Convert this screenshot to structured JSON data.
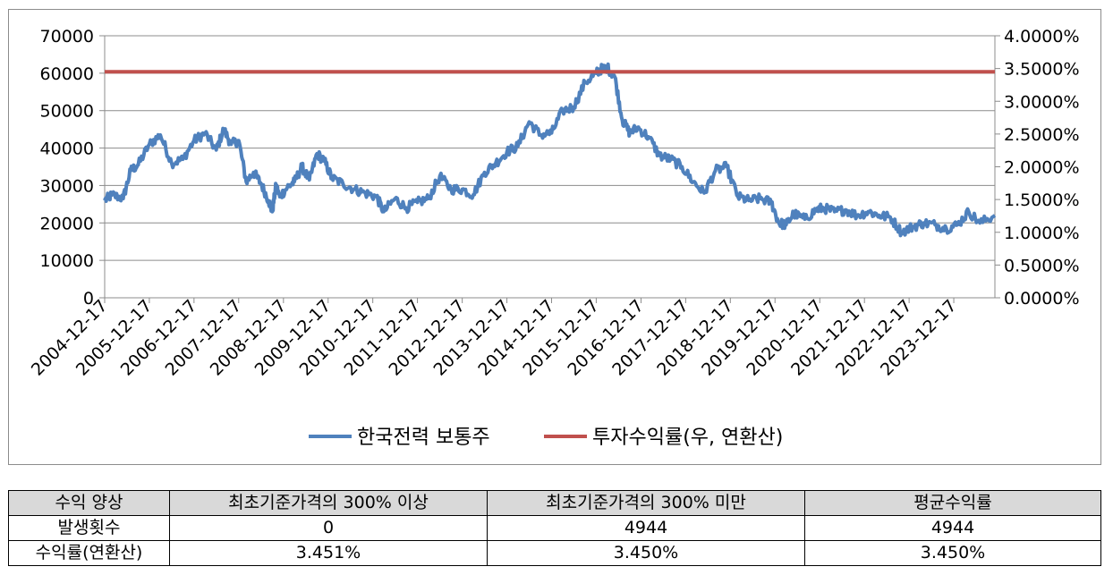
{
  "chart_data": {
    "type": "line",
    "title": "",
    "xlabel": "",
    "ylabel": "",
    "ylim": [
      0,
      70000
    ],
    "y2lim": [
      0,
      0.04
    ],
    "yticks": [
      "0",
      "10000",
      "20000",
      "30000",
      "40000",
      "50000",
      "60000",
      "70000"
    ],
    "y2ticks": [
      "0.0000%",
      "0.5000%",
      "1.0000%",
      "1.5000%",
      "2.0000%",
      "2.5000%",
      "3.0000%",
      "3.5000%",
      "4.0000%"
    ],
    "x_range": [
      "2004-12-17",
      "2024-11-17"
    ],
    "xticks": [
      "2004-12-17",
      "2005-12-17",
      "2006-12-17",
      "2007-12-17",
      "2008-12-17",
      "2009-12-17",
      "2010-12-17",
      "2011-12-17",
      "2012-12-17",
      "2013-12-17",
      "2014-12-17",
      "2015-12-17",
      "2016-12-17",
      "2017-12-17",
      "2018-12-17",
      "2019-12-17",
      "2020-12-17",
      "2021-12-17",
      "2022-12-17",
      "2023-12-17"
    ],
    "grid": true,
    "legend_position": "bottom",
    "series": [
      {
        "name": "한국전력 보통주",
        "axis": "left",
        "color": "#4f81bd",
        "x": [
          "2004-12-17",
          "2005-02-17",
          "2005-05-17",
          "2005-07-17",
          "2005-09-17",
          "2005-12-17",
          "2006-03-17",
          "2006-06-17",
          "2006-09-17",
          "2006-12-17",
          "2007-03-17",
          "2007-06-17",
          "2007-08-17",
          "2007-10-17",
          "2007-12-17",
          "2008-02-17",
          "2008-04-17",
          "2008-06-17",
          "2008-08-17",
          "2008-09-17",
          "2008-10-17",
          "2008-11-17",
          "2009-01-17",
          "2009-03-17",
          "2009-05-17",
          "2009-07-17",
          "2009-09-17",
          "2009-11-17",
          "2010-01-17",
          "2010-04-17",
          "2010-07-17",
          "2010-10-17",
          "2011-01-17",
          "2011-03-17",
          "2011-06-17",
          "2011-09-17",
          "2011-12-17",
          "2012-03-17",
          "2012-06-17",
          "2012-09-17",
          "2012-12-17",
          "2013-03-17",
          "2013-06-17",
          "2013-09-17",
          "2013-12-17",
          "2014-03-17",
          "2014-06-17",
          "2014-09-17",
          "2014-12-17",
          "2015-03-17",
          "2015-06-17",
          "2015-09-17",
          "2015-12-17",
          "2016-01-17",
          "2016-03-17",
          "2016-05-17",
          "2016-07-17",
          "2016-09-17",
          "2016-11-17",
          "2017-02-17",
          "2017-05-17",
          "2017-08-17",
          "2017-11-17",
          "2018-02-17",
          "2018-05-17",
          "2018-08-17",
          "2018-11-17",
          "2019-02-17",
          "2019-05-17",
          "2019-08-17",
          "2019-11-17",
          "2020-01-17",
          "2020-03-17",
          "2020-05-17",
          "2020-08-17",
          "2020-11-17",
          "2021-01-17",
          "2021-04-17",
          "2021-07-17",
          "2021-10-17",
          "2022-01-17",
          "2022-04-17",
          "2022-07-17",
          "2022-10-17",
          "2023-01-17",
          "2023-04-17",
          "2023-07-17",
          "2023-10-17",
          "2024-01-17",
          "2024-04-17",
          "2024-07-17",
          "2024-11-17"
        ],
        "values": [
          26000,
          27500,
          26500,
          34000,
          35500,
          41000,
          43500,
          36000,
          37000,
          42000,
          44000,
          39500,
          45000,
          41000,
          42000,
          31000,
          33500,
          30500,
          26000,
          23000,
          30000,
          27000,
          29500,
          31000,
          35000,
          31500,
          38500,
          36500,
          32000,
          30500,
          29000,
          28000,
          27000,
          23000,
          26500,
          24000,
          25500,
          26500,
          32500,
          29000,
          29000,
          27500,
          33500,
          36000,
          39000,
          40500,
          47000,
          43500,
          44000,
          50000,
          51000,
          57500,
          60000,
          61000,
          61500,
          59000,
          47500,
          44000,
          45500,
          43000,
          38000,
          37000,
          35000,
          31000,
          28000,
          34000,
          35000,
          27000,
          26000,
          26500,
          25500,
          20000,
          19500,
          22500,
          21000,
          23500,
          24000,
          23000,
          23500,
          22000,
          23000,
          22000,
          21500,
          17500,
          19000,
          20000,
          19500,
          18500,
          19500,
          23000,
          20000,
          22000
        ]
      },
      {
        "name": "투자수익률(우, 연환산)",
        "axis": "right",
        "color": "#c0504d",
        "x": [
          "2004-12-17",
          "2024-11-17"
        ],
        "values": [
          0.0345,
          0.0345
        ]
      }
    ]
  },
  "table": {
    "header": [
      "수익 양상",
      "최초기준가격의 300% 이상",
      "최초기준가격의 300% 미만",
      "평균수익률"
    ],
    "rows": [
      [
        "발생횟수",
        "0",
        "4944",
        "4944"
      ],
      [
        "수익률(연환산)",
        "3.451%",
        "3.450%",
        "3.450%"
      ]
    ]
  }
}
